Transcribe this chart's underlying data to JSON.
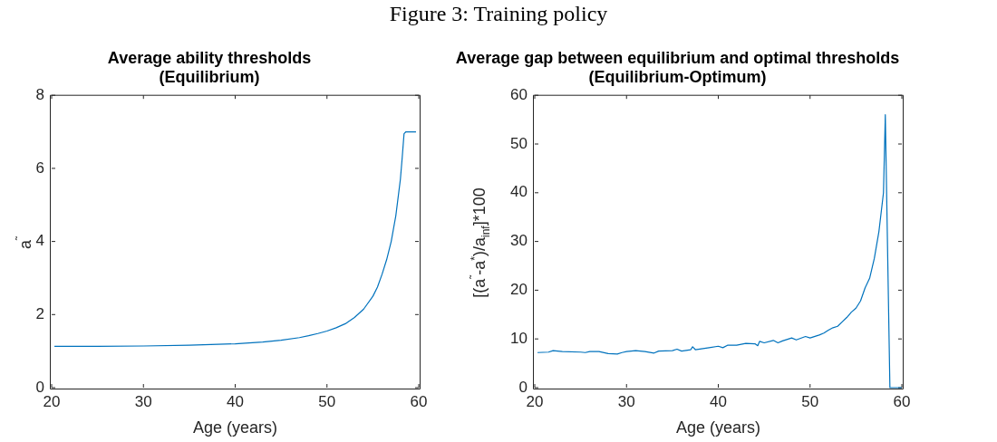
{
  "chart_data": [
    {
      "type": "line",
      "title": "Average ability thresholds\n(Equilibrium)",
      "annotations": [
        "Figure 3: Training policy"
      ],
      "xlabel": "Age (years)",
      "ylabel": "a$^{˜}$",
      "x": [
        20.3,
        25,
        30,
        35,
        40,
        43,
        45,
        47,
        48,
        49,
        50,
        51,
        52,
        53,
        54,
        55,
        55.5,
        56,
        56.5,
        57,
        57.5,
        58,
        58.2,
        58.4,
        58.6,
        59,
        59.7
      ],
      "series": [
        {
          "color": "#0072bd",
          "values": [
            1.13,
            1.13,
            1.14,
            1.16,
            1.2,
            1.25,
            1.3,
            1.37,
            1.42,
            1.48,
            1.55,
            1.64,
            1.75,
            1.92,
            2.15,
            2.5,
            2.75,
            3.1,
            3.5,
            4.0,
            4.7,
            5.7,
            6.3,
            6.95,
            7.0,
            7.0,
            7.0
          ]
        }
      ],
      "xlim": [
        20,
        60
      ],
      "xticks": [
        20,
        30,
        40,
        50,
        60
      ],
      "ylim": [
        0,
        8
      ],
      "yticks": [
        0,
        2,
        4,
        6,
        8
      ],
      "grid": false,
      "marker": "none",
      "line_style": "solid"
    },
    {
      "type": "line",
      "title": "Average gap between equilibrium and optimal thresholds\n(Equilibrium-Optimum)",
      "xlabel": "Age (years)",
      "ylabel": "[(a$^{˜}$-a$^{*}$)/a$_{inf}$]*100",
      "x": [
        20.3,
        21.5,
        22,
        23,
        25,
        25.5,
        26,
        27,
        28,
        29,
        29.5,
        30,
        31,
        32,
        33,
        33.5,
        35,
        35.5,
        36,
        37,
        37.2,
        37.5,
        39,
        40,
        40.5,
        41,
        42,
        43,
        44,
        44.3,
        44.5,
        45,
        46,
        46.5,
        47,
        48,
        48.5,
        49.5,
        50,
        51,
        51.5,
        52,
        52.5,
        53,
        53.5,
        54,
        54.5,
        55,
        55.5,
        56,
        56.5,
        57,
        57.5,
        58,
        58.2,
        58.7,
        60
      ],
      "series": [
        {
          "color": "#0072bd",
          "values": [
            7.2,
            7.3,
            7.6,
            7.4,
            7.3,
            7.2,
            7.4,
            7.4,
            7.0,
            6.9,
            7.2,
            7.4,
            7.6,
            7.4,
            7.1,
            7.5,
            7.6,
            7.9,
            7.5,
            7.8,
            8.4,
            7.8,
            8.2,
            8.5,
            8.2,
            8.7,
            8.7,
            9.1,
            9.0,
            8.6,
            9.5,
            9.2,
            9.7,
            9.2,
            9.6,
            10.2,
            9.8,
            10.5,
            10.2,
            10.8,
            11.2,
            11.8,
            12.3,
            12.6,
            13.5,
            14.4,
            15.5,
            16.3,
            17.8,
            20.5,
            22.5,
            26.5,
            32,
            40,
            56,
            0,
            0
          ]
        }
      ],
      "xlim": [
        20,
        60
      ],
      "xticks": [
        20,
        30,
        40,
        50,
        60
      ],
      "ylim": [
        0,
        60
      ],
      "yticks": [
        0,
        10,
        20,
        30,
        40,
        50,
        60
      ],
      "grid": false,
      "marker": "none",
      "line_style": "solid"
    }
  ]
}
